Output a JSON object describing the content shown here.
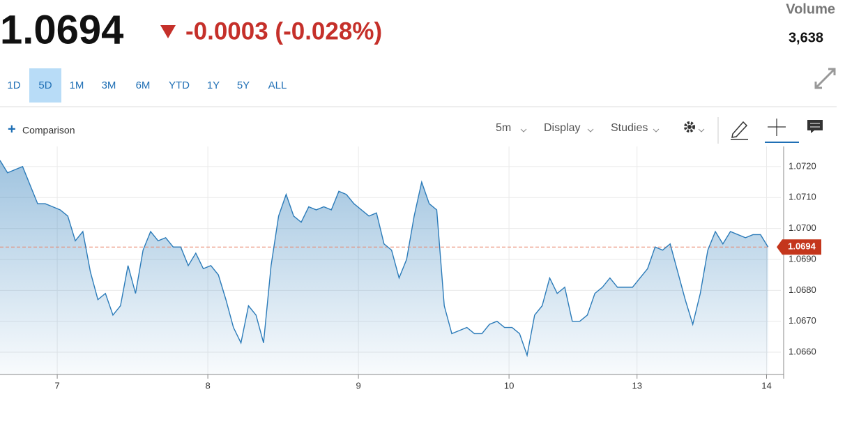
{
  "header": {
    "price": "1.0694",
    "change": "-0.0003 (-0.028%)",
    "volume_label": "Volume",
    "volume": "3,638"
  },
  "range_tabs": {
    "items": [
      "1D",
      "5D",
      "1M",
      "3M",
      "6M",
      "YTD",
      "1Y",
      "5Y",
      "ALL"
    ],
    "selected_index": 1
  },
  "toolbar": {
    "comparison": "Comparison",
    "interval": "5m",
    "display": "Display",
    "studies": "Studies"
  },
  "chart_data": {
    "type": "line",
    "grid": true,
    "series": [
      {
        "color": "#2b7bb9",
        "x": [
          0,
          0.05,
          0.1,
          0.15,
          0.2,
          0.25,
          0.3,
          0.35,
          0.4,
          0.45,
          0.5,
          0.55,
          0.6,
          0.65,
          0.7,
          0.75,
          0.8,
          0.85,
          0.9,
          0.95,
          1,
          1.05,
          1.1,
          1.15,
          1.2,
          1.25,
          1.3,
          1.35,
          1.4,
          1.45,
          1.5,
          1.55,
          1.6,
          1.65,
          1.7,
          1.75,
          1.8,
          1.85,
          1.9,
          1.95,
          2,
          2.05,
          2.1,
          2.15,
          2.2,
          2.25,
          2.3,
          2.35,
          2.4,
          2.45,
          2.5,
          2.55,
          2.6,
          2.65,
          2.7,
          2.75,
          2.8,
          2.85,
          2.9,
          2.95,
          3,
          3.05,
          3.1,
          3.15,
          3.2,
          3.25,
          3.3,
          3.35,
          3.4,
          3.45,
          3.5,
          3.55,
          3.6,
          3.65,
          3.7,
          3.75,
          3.8,
          3.85,
          3.9,
          3.95,
          4,
          4.05,
          4.1,
          4.15,
          4.2,
          4.25,
          4.3,
          4.35,
          4.4,
          4.45,
          4.5,
          4.55,
          4.6,
          4.65,
          4.7,
          4.75,
          4.8,
          4.85,
          4.9,
          4.95,
          5,
          5.05,
          5.1
        ],
        "values": [
          1.0722,
          1.0718,
          1.0719,
          1.072,
          1.0714,
          1.0708,
          1.0708,
          1.0707,
          1.0706,
          1.0704,
          1.0696,
          1.0699,
          1.0686,
          1.0677,
          1.0679,
          1.0672,
          1.0675,
          1.0688,
          1.0679,
          1.0693,
          1.0699,
          1.0696,
          1.0697,
          1.0694,
          1.0694,
          1.0688,
          1.0692,
          1.0687,
          1.0688,
          1.0685,
          1.0677,
          1.0668,
          1.0663,
          1.0675,
          1.0672,
          1.0663,
          1.0688,
          1.0704,
          1.0711,
          1.0704,
          1.0702,
          1.0707,
          1.0706,
          1.0707,
          1.0706,
          1.0712,
          1.0711,
          1.0708,
          1.0706,
          1.0704,
          1.0705,
          1.0695,
          1.0693,
          1.0684,
          1.069,
          1.0704,
          1.0715,
          1.0708,
          1.0706,
          1.0675,
          1.0666,
          1.0667,
          1.0668,
          1.0666,
          1.0666,
          1.0669,
          1.067,
          1.0668,
          1.0668,
          1.0666,
          1.0659,
          1.0672,
          1.0675,
          1.0684,
          1.0679,
          1.0681,
          1.067,
          1.067,
          1.0672,
          1.0679,
          1.0681,
          1.0684,
          1.0681,
          1.0681,
          1.0681,
          1.0684,
          1.0687,
          1.0694,
          1.0693,
          1.0695,
          1.0686,
          1.0677,
          1.0669,
          1.0679,
          1.0693,
          1.0699,
          1.0695,
          1.0699,
          1.0698,
          1.0697,
          1.0698,
          1.0698,
          1.0694
        ]
      }
    ],
    "last_value": 1.0694,
    "last_value_color": "#c4361c",
    "xlim": [
      0,
      5.185
    ],
    "xticks": [
      {
        "value": 0.38,
        "label": "7"
      },
      {
        "value": 1.38,
        "label": "8"
      },
      {
        "value": 2.38,
        "label": "9"
      },
      {
        "value": 3.38,
        "label": "10"
      },
      {
        "value": 4.23,
        "label": "13"
      },
      {
        "value": 5.09,
        "label": "14"
      }
    ],
    "ylim": [
      1.06528,
      1.07265
    ],
    "yticks": [
      {
        "value": 1.066,
        "label": "1.0660"
      },
      {
        "value": 1.067,
        "label": "1.0670"
      },
      {
        "value": 1.068,
        "label": "1.0680"
      },
      {
        "value": 1.069,
        "label": "1.0690"
      },
      {
        "value": 1.07,
        "label": "1.0700"
      },
      {
        "value": 1.071,
        "label": "1.0710"
      },
      {
        "value": 1.072,
        "label": "1.0720"
      }
    ]
  }
}
